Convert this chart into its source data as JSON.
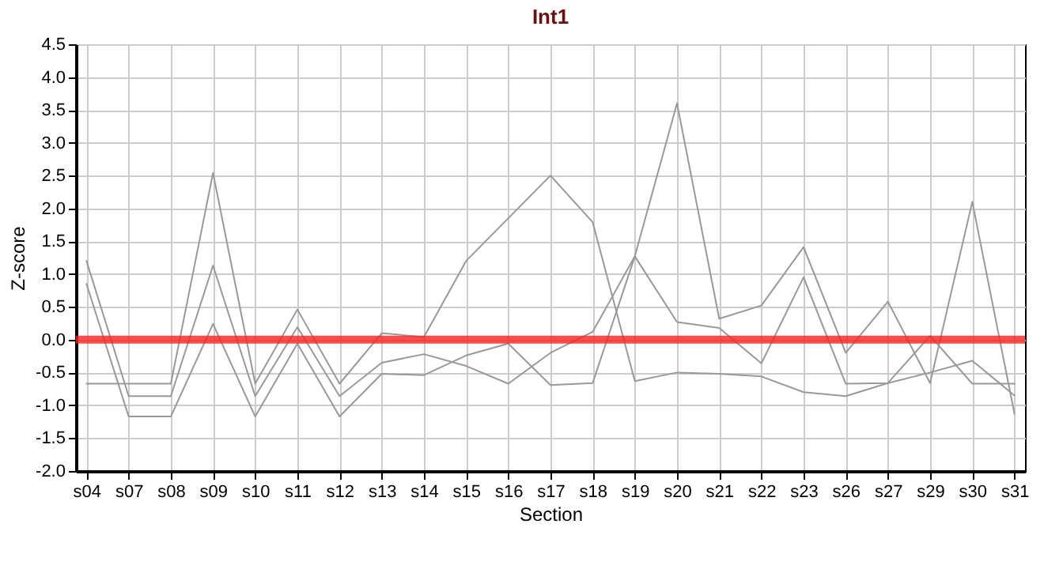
{
  "chart_data": {
    "type": "line",
    "title": "Int1",
    "xlabel": "Section",
    "ylabel": "Z-score",
    "categories": [
      "s04",
      "s07",
      "s08",
      "s09",
      "s10",
      "s11",
      "s12",
      "s13",
      "s14",
      "s15",
      "s16",
      "s17",
      "s18",
      "s19",
      "s20",
      "s21",
      "s22",
      "s23",
      "s26",
      "s27",
      "s29",
      "s30",
      "s31"
    ],
    "series": [
      {
        "color": "#999999",
        "values": [
          1.2,
          -0.86,
          -0.86,
          1.13,
          -0.86,
          0.19,
          -0.86,
          -0.35,
          -0.22,
          -0.4,
          -0.67,
          -0.2,
          0.12,
          1.27,
          0.27,
          0.18,
          -0.36,
          0.95,
          -0.67,
          -0.66,
          0.06,
          -0.67,
          -0.67
        ]
      },
      {
        "color": "#999999",
        "values": [
          0.85,
          -1.17,
          -1.17,
          0.24,
          -1.17,
          -0.06,
          -1.17,
          -0.52,
          -0.54,
          -0.24,
          -0.06,
          -0.69,
          -0.66,
          1.27,
          3.6,
          0.32,
          0.52,
          1.41,
          -0.2,
          0.58,
          -0.66,
          2.1,
          -1.13
        ]
      },
      {
        "color": "#999999",
        "values": [
          -0.67,
          -0.67,
          -0.67,
          2.54,
          -0.67,
          0.46,
          -0.67,
          0.1,
          0.04,
          1.2,
          1.85,
          2.5,
          1.79,
          -0.63,
          -0.5,
          -0.52,
          -0.56,
          -0.8,
          -0.86,
          -0.66,
          -0.5,
          -0.32,
          -0.85
        ]
      }
    ],
    "ylim": [
      -2.0,
      4.5
    ],
    "yticks": [
      {
        "value": -2,
        "label": "-2.0"
      },
      {
        "value": -1.5,
        "label": "-1.5"
      },
      {
        "value": -1,
        "label": "-1.0"
      },
      {
        "value": -0.5,
        "label": "-0.5"
      },
      {
        "value": 0,
        "label": "0.0"
      },
      {
        "value": 0.5,
        "label": "0.5"
      },
      {
        "value": 1,
        "label": "1.0"
      },
      {
        "value": 1.5,
        "label": "1.5"
      },
      {
        "value": 2,
        "label": "2.0"
      },
      {
        "value": 2.5,
        "label": "2.5"
      },
      {
        "value": 3,
        "label": "3.0"
      },
      {
        "value": 3.5,
        "label": "3.5"
      },
      {
        "value": 4,
        "label": "4.0"
      },
      {
        "value": 4.5,
        "label": "4.5"
      }
    ],
    "ref_lines": [
      {
        "axis": "y",
        "value": 0,
        "color": "#ff2020"
      }
    ],
    "grid": true,
    "marker": "none",
    "line_style": "solid",
    "legend": false
  }
}
